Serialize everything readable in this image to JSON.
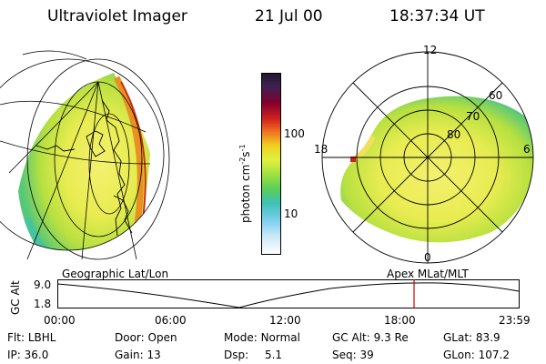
{
  "header": {
    "instrument": "Ultraviolet Imager",
    "date": "21 Jul 00",
    "time": "18:37:34 UT"
  },
  "colorbar": {
    "unit_main": "photon cm",
    "unit_exp1": "-2",
    "unit_s": "s",
    "unit_exp2": "-1",
    "ticks": [
      "100",
      "10"
    ],
    "scale": "log"
  },
  "polar_plot": {
    "mlt_labels": [
      "12",
      "18",
      "6",
      "0"
    ],
    "lat_labels": [
      "60",
      "70",
      "80"
    ]
  },
  "timeline": {
    "left_label": "Geographic Lat/Lon",
    "right_label": "Apex MLat/MLT",
    "y_axis_label": "GC Alt",
    "y_ticks": [
      "9.0",
      "1.8"
    ],
    "x_ticks": [
      "00:00",
      "06:00",
      "12:00",
      "18:00",
      "23:59"
    ],
    "marker_time": "18:37",
    "marker_color": "#c00000"
  },
  "status": {
    "row1": [
      {
        "label": "Flt:",
        "value": "LBHL"
      },
      {
        "label": "Door:",
        "value": "Open"
      },
      {
        "label": "Mode:",
        "value": "Normal"
      },
      {
        "label": "GC Alt:",
        "value": "9.3 Re"
      },
      {
        "label": "GLat:",
        "value": "83.9"
      }
    ],
    "row2": [
      {
        "label": "IP:",
        "value": "36.0"
      },
      {
        "label": "Gain:",
        "value": "13"
      },
      {
        "label": "Dsp:",
        "value": "5.1"
      },
      {
        "label": "Seq:",
        "value": "39"
      },
      {
        "label": "GLon:",
        "value": "107.2"
      }
    ]
  }
}
